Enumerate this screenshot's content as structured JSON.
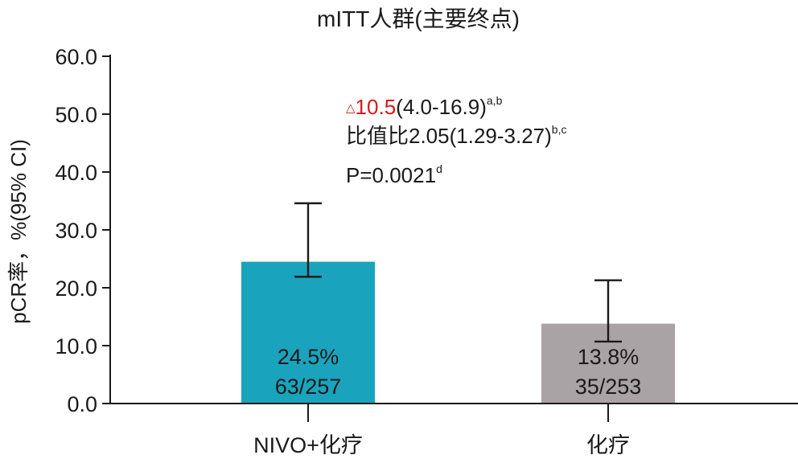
{
  "chart_data": {
    "type": "bar",
    "title": "mITT人群(主要终点)",
    "ylabel": "pCR率，%(95% CI)",
    "xlabel": "",
    "ylim": [
      0,
      60
    ],
    "yticks": [
      "0.0",
      "10.0",
      "20.0",
      "30.0",
      "40.0",
      "50.0",
      "60.0"
    ],
    "grid": false,
    "categories": [
      "NIVO+化疗",
      "化疗"
    ],
    "values": [
      24.5,
      13.8
    ],
    "ci_low": [
      21.9,
      10.7
    ],
    "ci_high": [
      34.6,
      21.3
    ],
    "colors": [
      "#1aa3bd",
      "#aaa3a5"
    ],
    "bar_labels": [
      {
        "percent": "24.5%",
        "count": "63/257"
      },
      {
        "percent": "13.8%",
        "count": "35/253"
      }
    ],
    "annotations": {
      "delta_symbol": "△",
      "delta_value": "10.5",
      "delta_ci": "(4.0-16.9)",
      "delta_sup": "a,b",
      "odds_ratio": "比值比2.05(1.29-3.27)",
      "odds_sup": "b,c",
      "p_value": "P=0.0021",
      "p_sup": "d"
    }
  },
  "colors": {
    "highlight": "#d7191c",
    "axis": "#1a1a1a"
  }
}
